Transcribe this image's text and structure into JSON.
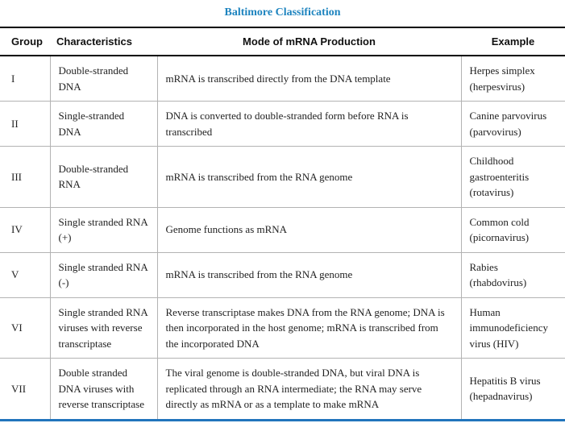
{
  "title": "Baltimore Classification",
  "colors": {
    "title_blue": "#1e84bf",
    "bottom_border_blue": "#2175bc",
    "header_border_black": "#000000",
    "grid_gray": "#b3b3b3"
  },
  "table": {
    "headers": [
      "Group",
      "Characteristics",
      "Mode of mRNA Production",
      "Example"
    ],
    "rows": [
      {
        "group": "I",
        "characteristics": "Double-stranded DNA",
        "mode": "mRNA is transcribed directly from the DNA template",
        "example": "Herpes simplex (herpesvirus)"
      },
      {
        "group": "II",
        "characteristics": "Single-stranded DNA",
        "mode": "DNA is converted to double-stranded form before RNA is transcribed",
        "example": "Canine parvovirus (parvovirus)"
      },
      {
        "group": "III",
        "characteristics": "Double-stranded RNA",
        "mode": "mRNA is transcribed from the RNA genome",
        "example": "Childhood gastroenteritis (rotavirus)"
      },
      {
        "group": "IV",
        "characteristics": "Single stranded RNA (+)",
        "mode": "Genome functions as mRNA",
        "example": "Common cold (picornavirus)"
      },
      {
        "group": "V",
        "characteristics": "Single stranded RNA (-)",
        "mode": "mRNA is transcribed from the RNA genome",
        "example": "Rabies (rhabdovirus)"
      },
      {
        "group": "VI",
        "characteristics": "Single stranded RNA viruses with reverse transcriptase",
        "mode": "Reverse transcriptase makes DNA from the RNA genome; DNA is then incorporated in the host genome; mRNA is transcribed from the incorporated DNA",
        "example": "Human immunodeficiency virus (HIV)"
      },
      {
        "group": "VII",
        "characteristics": "Double stranded DNA viruses with reverse transcriptase",
        "mode": "The viral genome is double-stranded DNA, but viral DNA is replicated through an RNA intermediate; the RNA may serve directly as mRNA or as a template to make mRNA",
        "example": "Hepatitis B virus (hepadnavirus)"
      }
    ]
  }
}
